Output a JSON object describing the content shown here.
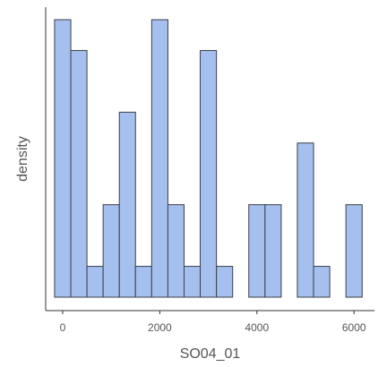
{
  "chart_data": {
    "type": "bar",
    "title": "",
    "xlabel": "SO04_01",
    "ylabel": "density",
    "xlim": [
      -350,
      6420
    ],
    "ylim": [
      0,
      9.4
    ],
    "x_ticks": [
      "0",
      "2000",
      "4000",
      "6000"
    ],
    "x_tick_values": [
      0,
      2000,
      4000,
      6000
    ],
    "grid": false,
    "legend": "none",
    "bar_fill": "#a5c0ee",
    "bar_stroke": "#3a3f4a",
    "axis_color": "#333333",
    "bin_width": 333,
    "bins": [
      {
        "x0": -167,
        "x1": 167,
        "value": 9
      },
      {
        "x0": 167,
        "x1": 500,
        "value": 8
      },
      {
        "x0": 500,
        "x1": 833,
        "value": 1
      },
      {
        "x0": 833,
        "x1": 1167,
        "value": 3
      },
      {
        "x0": 1167,
        "x1": 1500,
        "value": 6
      },
      {
        "x0": 1500,
        "x1": 1833,
        "value": 1
      },
      {
        "x0": 1833,
        "x1": 2167,
        "value": 9
      },
      {
        "x0": 2167,
        "x1": 2500,
        "value": 3
      },
      {
        "x0": 2500,
        "x1": 2833,
        "value": 1
      },
      {
        "x0": 2833,
        "x1": 3167,
        "value": 8
      },
      {
        "x0": 3167,
        "x1": 3500,
        "value": 1
      },
      {
        "x0": 3500,
        "x1": 3833,
        "value": 0
      },
      {
        "x0": 3833,
        "x1": 4167,
        "value": 3
      },
      {
        "x0": 4167,
        "x1": 4500,
        "value": 3
      },
      {
        "x0": 4500,
        "x1": 4833,
        "value": 0
      },
      {
        "x0": 4833,
        "x1": 5167,
        "value": 5
      },
      {
        "x0": 5167,
        "x1": 5500,
        "value": 1
      },
      {
        "x0": 5500,
        "x1": 5833,
        "value": 0
      },
      {
        "x0": 5833,
        "x1": 6167,
        "value": 3
      }
    ]
  }
}
